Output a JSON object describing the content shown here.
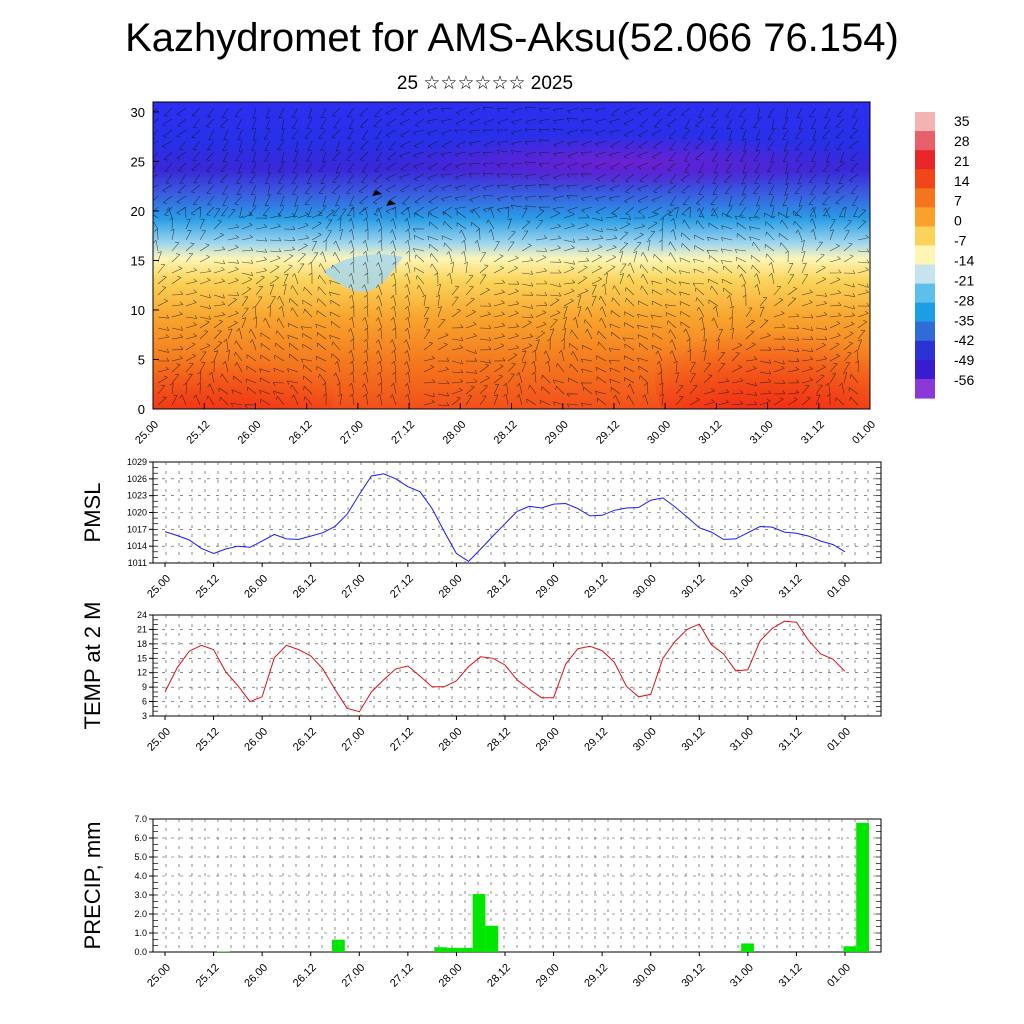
{
  "title": "Kazhydromet for AMS-Aksu(52.066 76.154)",
  "subtitle": "25 ☆☆☆☆☆☆ 2025",
  "chart_data": [
    {
      "type": "heatmap",
      "name": "vertical-section",
      "y_ticks": [
        "0",
        "5",
        "10",
        "15",
        "20",
        "25",
        "30"
      ],
      "ylim": [
        0,
        31
      ],
      "x_ticks": [
        "25.00",
        "25.12",
        "26.00",
        "26.12",
        "27.00",
        "27.12",
        "28.00",
        "28.12",
        "29.00",
        "29.12",
        "30.00",
        "30.12",
        "31.00",
        "31.12",
        "01.00"
      ],
      "colorbar_labels": [
        "35",
        "28",
        "21",
        "14",
        "7",
        "0",
        "-7",
        "-14",
        "-21",
        "-28",
        "-35",
        "-42",
        "-49",
        "-56"
      ],
      "colorbar_colors": [
        "#f4b3b3",
        "#e8606a",
        "#e8262a",
        "#f0461a",
        "#f4751e",
        "#f8a22c",
        "#fbd25a",
        "#fdf6b4",
        "#c7e3ee",
        "#5cc0ea",
        "#1d9ee4",
        "#2f6cd8",
        "#2b32d6",
        "#3a1bd0",
        "#8a38d8"
      ]
    },
    {
      "type": "line",
      "name": "pmsl",
      "ylabel": "PMSL",
      "y_ticks": [
        "1011",
        "1014",
        "1017",
        "1020",
        "1023",
        "1026",
        "1029"
      ],
      "ylim": [
        1011,
        1029
      ],
      "x_ticks": [
        "25.00",
        "25.12",
        "26.00",
        "26.12",
        "27.00",
        "27.12",
        "28.00",
        "28.12",
        "29.00",
        "29.12",
        "30.00",
        "30.12",
        "31.00",
        "31.12",
        "01.00"
      ],
      "line_color": "#1a1aff",
      "values": [
        1016.6,
        1015.9,
        1015.1,
        1013.6,
        1012.7,
        1013.5,
        1014.0,
        1013.8,
        1014.9,
        1016.1,
        1015.3,
        1015.2,
        1015.8,
        1016.4,
        1017.5,
        1019.7,
        1023.2,
        1026.5,
        1026.9,
        1026.0,
        1024.6,
        1023.7,
        1020.7,
        1016.6,
        1012.7,
        1011.3,
        1013.5,
        1015.8,
        1018.0,
        1020.2,
        1021.1,
        1020.8,
        1021.5,
        1021.6,
        1020.7,
        1019.4,
        1019.5,
        1020.4,
        1020.8,
        1020.9,
        1022.2,
        1022.6,
        1021.0,
        1019.2,
        1017.3,
        1016.5,
        1015.2,
        1015.3,
        1016.4,
        1017.5,
        1017.4,
        1016.5,
        1016.3,
        1015.8,
        1014.9,
        1014.3,
        1013.0
      ]
    },
    {
      "type": "line",
      "name": "temp2m",
      "ylabel": "TEMP at 2 M",
      "y_ticks": [
        "3",
        "6",
        "9",
        "12",
        "15",
        "18",
        "21",
        "24"
      ],
      "ylim": [
        3,
        24
      ],
      "x_ticks": [
        "25.00",
        "25.12",
        "26.00",
        "26.12",
        "27.00",
        "27.12",
        "28.00",
        "28.12",
        "29.00",
        "29.12",
        "30.00",
        "30.12",
        "31.00",
        "31.12",
        "01.00"
      ],
      "line_color": "#e0101a",
      "values": [
        8.0,
        13.0,
        16.5,
        17.7,
        16.8,
        12.2,
        9.3,
        6.0,
        7.0,
        15.1,
        17.7,
        16.8,
        15.5,
        12.8,
        8.5,
        4.6,
        3.9,
        8.0,
        10.5,
        12.8,
        13.4,
        11.3,
        9.1,
        9.1,
        10.3,
        13.3,
        15.3,
        15.0,
        13.6,
        10.5,
        8.6,
        6.8,
        6.8,
        13.8,
        17.0,
        17.5,
        16.6,
        14.2,
        9.2,
        7.0,
        7.5,
        15.0,
        18.5,
        21.0,
        22.1,
        17.8,
        15.9,
        12.4,
        12.6,
        18.6,
        21.2,
        22.7,
        22.5,
        18.7,
        15.9,
        14.8,
        12.3
      ]
    },
    {
      "type": "bar",
      "name": "precip",
      "ylabel": "PRECIP, mm",
      "y_ticks": [
        "0.0",
        "1.0",
        "2.0",
        "3.0",
        "4.0",
        "5.0",
        "6.0",
        "7.0"
      ],
      "ylim": [
        0,
        7
      ],
      "x_ticks": [
        "25.00",
        "25.12",
        "26.00",
        "26.12",
        "27.00",
        "27.12",
        "28.00",
        "28.12",
        "29.00",
        "29.12",
        "30.00",
        "30.12",
        "31.00",
        "31.12",
        "01.00"
      ],
      "bar_color": "#00e600",
      "values": [
        0,
        0,
        0,
        0,
        0,
        0.03,
        0,
        0,
        0,
        0,
        0,
        0,
        0,
        0,
        0.65,
        0,
        0,
        0,
        0,
        0,
        0,
        0,
        0.25,
        0.22,
        0.22,
        3.05,
        1.38,
        0,
        0,
        0,
        0,
        0,
        0,
        0,
        0,
        0,
        0,
        0,
        0,
        0,
        0,
        0,
        0,
        0,
        0,
        0,
        0.45,
        0,
        0,
        0,
        0,
        0,
        0,
        0,
        0.3,
        6.8
      ]
    }
  ]
}
